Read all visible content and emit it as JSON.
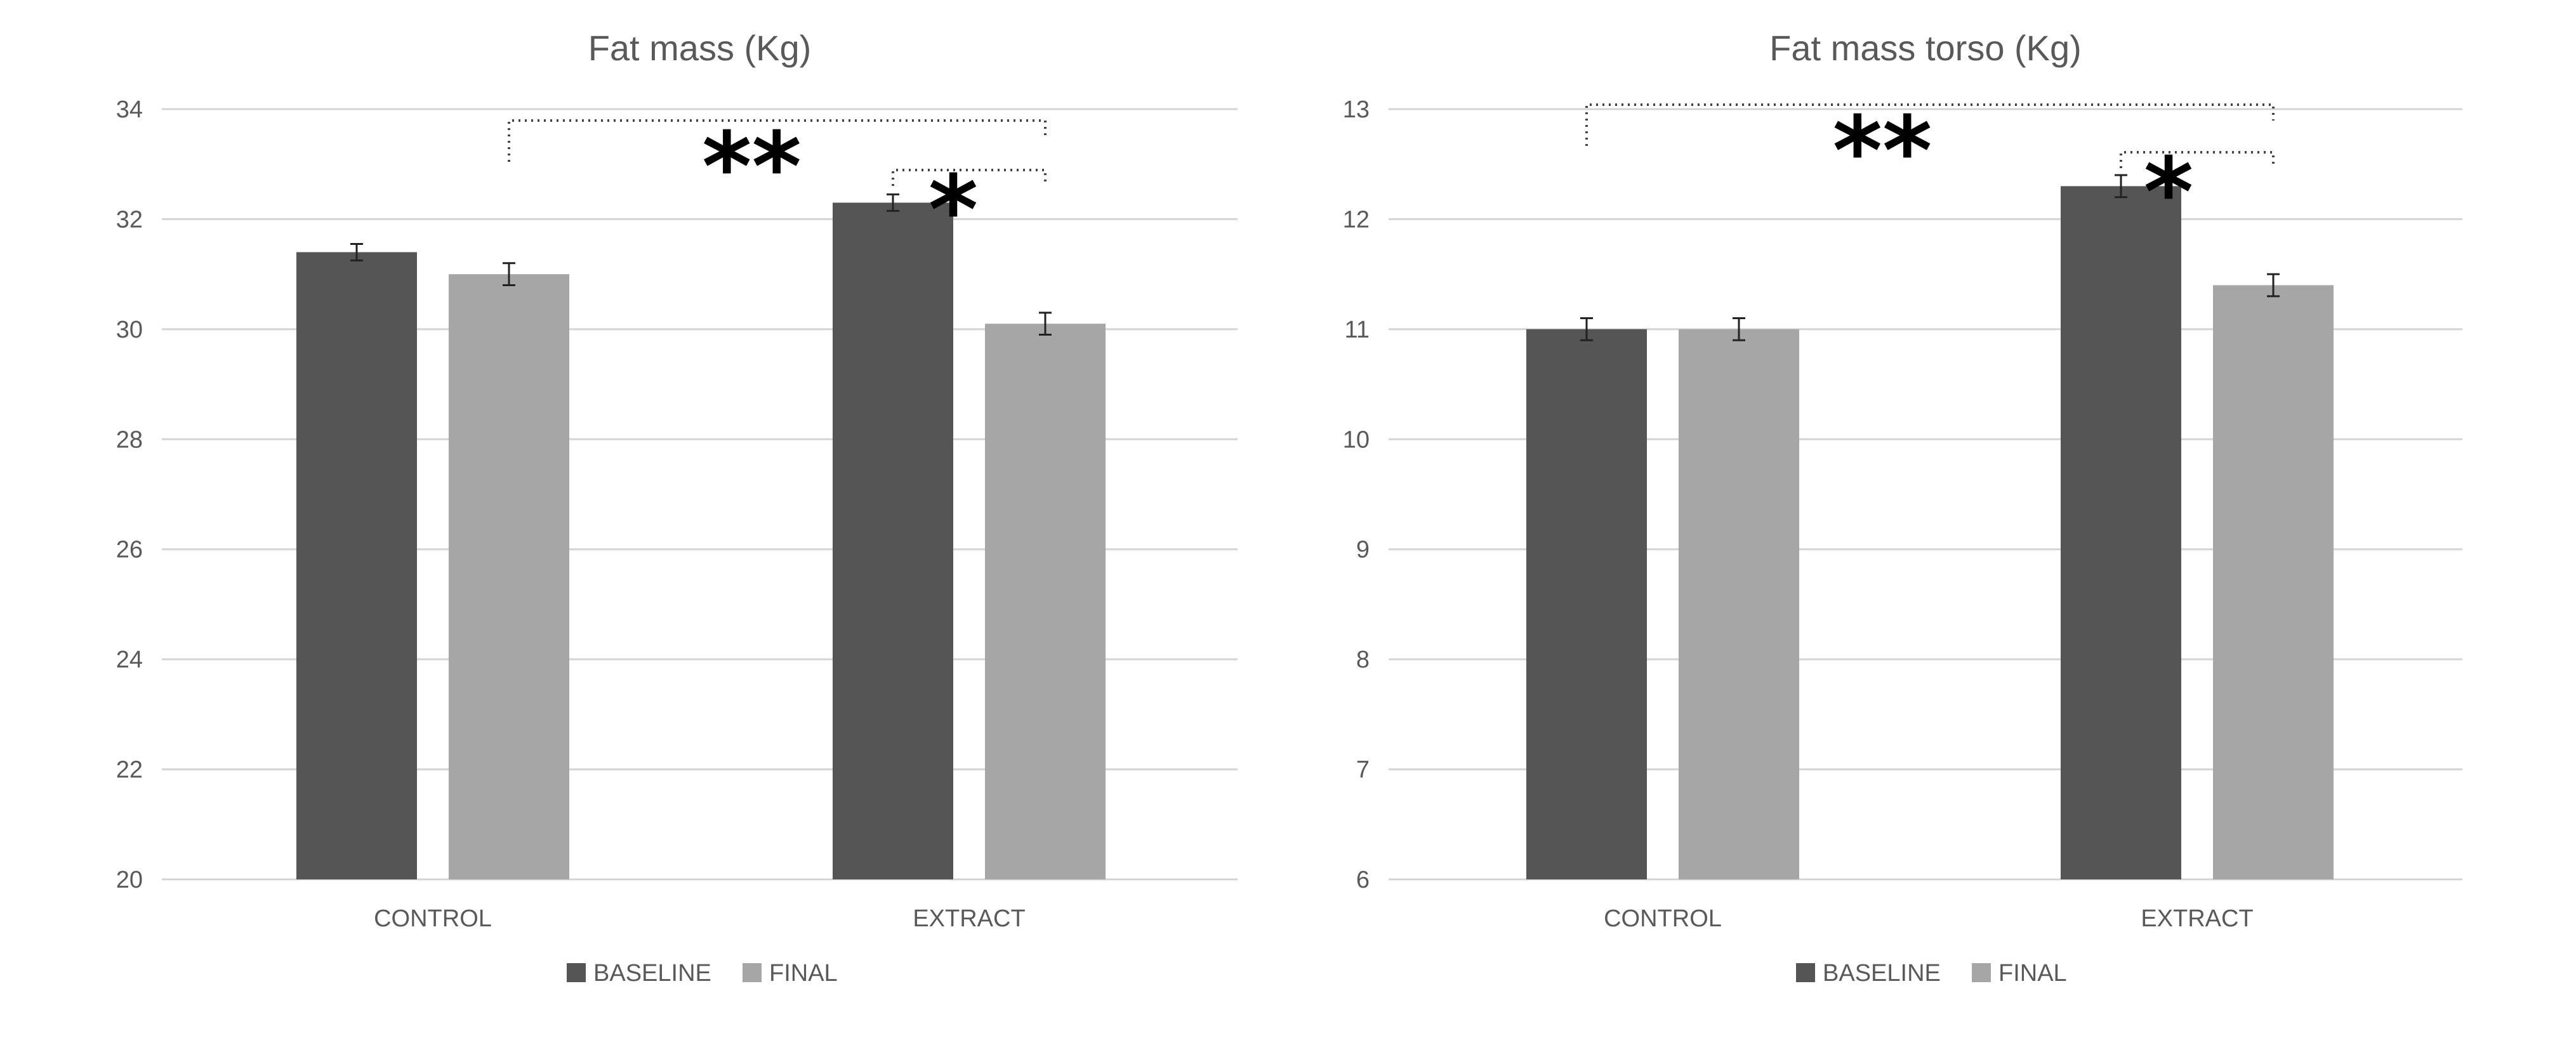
{
  "chart_data": [
    {
      "type": "bar",
      "title": "Fat mass (Kg)",
      "categories": [
        "CONTROL",
        "EXTRACT"
      ],
      "ylim": [
        20,
        34
      ],
      "yticks": [
        20,
        22,
        24,
        26,
        28,
        30,
        32,
        34
      ],
      "grid": true,
      "legend_position": "bottom",
      "series": [
        {
          "name": "BASELINE",
          "color": "#555555",
          "values": [
            31.4,
            32.3
          ],
          "errors": [
            0.15,
            0.15
          ]
        },
        {
          "name": "FINAL",
          "color": "#a6a6a6",
          "values": [
            31.0,
            30.1
          ],
          "errors": [
            0.2,
            0.2
          ]
        }
      ],
      "annotations": [
        {
          "text": "**",
          "from": [
            0,
            1
          ],
          "to": [
            1,
            1
          ],
          "type": "bracket"
        },
        {
          "text": "*",
          "from": [
            1,
            0
          ],
          "to": [
            1,
            1
          ],
          "type": "bracket"
        }
      ]
    },
    {
      "type": "bar",
      "title": "Fat mass torso (Kg)",
      "categories": [
        "CONTROL",
        "EXTRACT"
      ],
      "ylim": [
        6,
        13
      ],
      "yticks": [
        6,
        7,
        8,
        9,
        10,
        11,
        12,
        13
      ],
      "grid": true,
      "legend_position": "bottom",
      "series": [
        {
          "name": "BASELINE",
          "color": "#555555",
          "values": [
            11.0,
            12.3
          ],
          "errors": [
            0.1,
            0.1
          ]
        },
        {
          "name": "FINAL",
          "color": "#a6a6a6",
          "values": [
            11.0,
            11.4
          ],
          "errors": [
            0.1,
            0.1
          ]
        }
      ],
      "annotations": [
        {
          "text": "**",
          "from": [
            0,
            0
          ],
          "to": [
            1,
            1
          ],
          "type": "bracket"
        },
        {
          "text": "*",
          "from": [
            1,
            0
          ],
          "to": [
            1,
            1
          ],
          "type": "bracket"
        }
      ]
    }
  ]
}
